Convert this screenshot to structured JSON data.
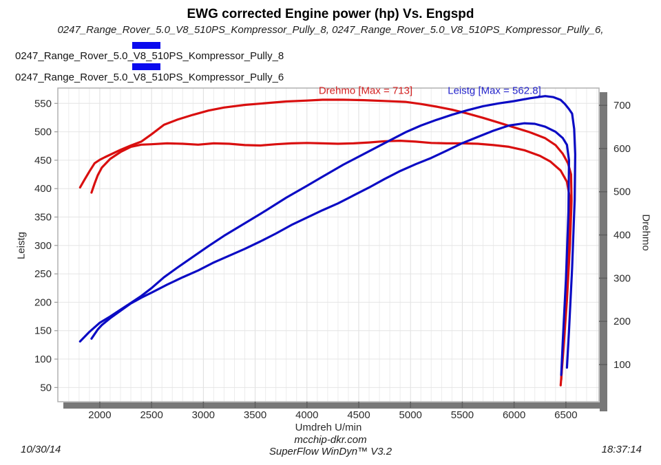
{
  "chart_data": {
    "type": "line",
    "title": "EWG corrected Engine power (hp) Vs. Engspd",
    "subtitle": "0247_Range_Rover_5.0_V8_510PS_Kompressor_Pully_8, 0247_Range_Rover_5.0_V8_510PS_Kompressor_Pully_6,",
    "legend": [
      {
        "label": "0247_Range_Rover_5.0_V8_510PS_Kompressor_Pully_8",
        "swatch_color": "#0a0aee"
      },
      {
        "label": "0247_Range_Rover_5.0_V8_510PS_Kompressor_Pully_6",
        "swatch_color": "#0a0aee"
      }
    ],
    "annotations": [
      {
        "text": "Drehmo [Max = 713]",
        "color": "#d42222"
      },
      {
        "text": "Leistg [Max = 562.8]",
        "color": "#2424cc"
      }
    ],
    "x_axis": {
      "label": "Umdreh U/min",
      "ticks": [
        2000,
        2500,
        3000,
        3500,
        4000,
        4500,
        5000,
        5500,
        6000,
        6500
      ],
      "range": [
        1595,
        6820
      ],
      "minor_grid_step": 100
    },
    "y_left": {
      "label": "Leistg",
      "ticks": [
        550,
        500,
        450,
        400,
        350,
        300,
        250,
        200,
        150,
        100,
        50
      ],
      "range": [
        25,
        577
      ]
    },
    "y_right": {
      "label": "Drehmo",
      "ticks": [
        700,
        600,
        500,
        400,
        300,
        200,
        100
      ],
      "range": [
        14,
        740
      ]
    },
    "grid": true,
    "legend_position": "top-left",
    "series": [
      {
        "name": "0247_Range_Rover_5.0_V8_510PS_Kompressor_Pully_8 Drehmo",
        "axis": "right",
        "unit": "Nm",
        "color": "#d90f0f",
        "points": [
          [
            1920,
            498
          ],
          [
            1950,
            519
          ],
          [
            1980,
            538
          ],
          [
            2020,
            556
          ],
          [
            2100,
            576
          ],
          [
            2200,
            592
          ],
          [
            2300,
            604
          ],
          [
            2400,
            609
          ],
          [
            2500,
            610
          ],
          [
            2650,
            612
          ],
          [
            2800,
            611
          ],
          [
            2950,
            609
          ],
          [
            3100,
            612
          ],
          [
            3250,
            611
          ],
          [
            3400,
            608
          ],
          [
            3550,
            607
          ],
          [
            3700,
            610
          ],
          [
            3850,
            612
          ],
          [
            4000,
            613
          ],
          [
            4150,
            612
          ],
          [
            4300,
            611
          ],
          [
            4450,
            612
          ],
          [
            4600,
            614
          ],
          [
            4750,
            617
          ],
          [
            4900,
            618
          ],
          [
            5050,
            616
          ],
          [
            5200,
            613
          ],
          [
            5350,
            612
          ],
          [
            5500,
            612
          ],
          [
            5650,
            611
          ],
          [
            5800,
            608
          ],
          [
            5950,
            604
          ],
          [
            6100,
            596
          ],
          [
            6250,
            583
          ],
          [
            6350,
            570
          ],
          [
            6450,
            549
          ],
          [
            6510,
            523
          ],
          [
            6535,
            490
          ],
          [
            6530,
            400
          ],
          [
            6505,
            280
          ],
          [
            6475,
            160
          ],
          [
            6455,
            65
          ]
        ]
      },
      {
        "name": "0247_Range_Rover_5.0_V8_510PS_Kompressor_Pully_6 Drehmo",
        "axis": "right",
        "unit": "Nm",
        "color": "#d90f0f",
        "points": [
          [
            1810,
            510
          ],
          [
            1850,
            527
          ],
          [
            1900,
            547
          ],
          [
            1950,
            566
          ],
          [
            2000,
            574
          ],
          [
            2050,
            580
          ],
          [
            2120,
            588
          ],
          [
            2200,
            597
          ],
          [
            2300,
            607
          ],
          [
            2400,
            616
          ],
          [
            2500,
            633
          ],
          [
            2620,
            655
          ],
          [
            2750,
            667
          ],
          [
            2900,
            678
          ],
          [
            3050,
            688
          ],
          [
            3200,
            695
          ],
          [
            3400,
            701
          ],
          [
            3600,
            705
          ],
          [
            3800,
            709
          ],
          [
            4000,
            711
          ],
          [
            4150,
            713
          ],
          [
            4350,
            713
          ],
          [
            4550,
            712
          ],
          [
            4750,
            710
          ],
          [
            4950,
            708
          ],
          [
            5100,
            703
          ],
          [
            5250,
            697
          ],
          [
            5400,
            690
          ],
          [
            5550,
            681
          ],
          [
            5700,
            671
          ],
          [
            5850,
            660
          ],
          [
            6000,
            649
          ],
          [
            6150,
            638
          ],
          [
            6300,
            624
          ],
          [
            6400,
            608
          ],
          [
            6470,
            588
          ],
          [
            6520,
            566
          ],
          [
            6550,
            540
          ],
          [
            6555,
            480
          ],
          [
            6540,
            380
          ],
          [
            6510,
            250
          ],
          [
            6475,
            130
          ],
          [
            6450,
            52
          ]
        ]
      },
      {
        "name": "0247_Range_Rover_5.0_V8_510PS_Kompressor_Pully_8 Leistg",
        "axis": "left",
        "unit": "hp",
        "color": "#0b0bc4",
        "points": [
          [
            1920,
            136
          ],
          [
            1980,
            152
          ],
          [
            2020,
            160
          ],
          [
            2100,
            172
          ],
          [
            2200,
            185
          ],
          [
            2300,
            198
          ],
          [
            2400,
            208
          ],
          [
            2500,
            217
          ],
          [
            2650,
            231
          ],
          [
            2800,
            244
          ],
          [
            2950,
            256
          ],
          [
            3100,
            270
          ],
          [
            3250,
            282
          ],
          [
            3400,
            294
          ],
          [
            3550,
            307
          ],
          [
            3700,
            321
          ],
          [
            3850,
            336
          ],
          [
            4000,
            349
          ],
          [
            4150,
            362
          ],
          [
            4300,
            374
          ],
          [
            4450,
            388
          ],
          [
            4600,
            402
          ],
          [
            4750,
            417
          ],
          [
            4900,
            431
          ],
          [
            5050,
            443
          ],
          [
            5200,
            454
          ],
          [
            5350,
            467
          ],
          [
            5500,
            480
          ],
          [
            5650,
            491
          ],
          [
            5800,
            502
          ],
          [
            5950,
            511
          ],
          [
            6100,
            515
          ],
          [
            6200,
            514
          ],
          [
            6300,
            509
          ],
          [
            6400,
            500
          ],
          [
            6470,
            489
          ],
          [
            6510,
            477
          ],
          [
            6530,
            450
          ],
          [
            6525,
            360
          ],
          [
            6500,
            240
          ],
          [
            6470,
            130
          ],
          [
            6455,
            72
          ]
        ]
      },
      {
        "name": "0247_Range_Rover_5.0_V8_510PS_Kompressor_Pully_6 Leistg",
        "axis": "left",
        "unit": "hp",
        "color": "#0b0bc4",
        "points": [
          [
            1810,
            131
          ],
          [
            1900,
            148
          ],
          [
            2000,
            164
          ],
          [
            2100,
            175
          ],
          [
            2200,
            187
          ],
          [
            2300,
            199
          ],
          [
            2400,
            211
          ],
          [
            2500,
            225
          ],
          [
            2620,
            244
          ],
          [
            2750,
            261
          ],
          [
            2900,
            280
          ],
          [
            3050,
            299
          ],
          [
            3200,
            317
          ],
          [
            3400,
            339
          ],
          [
            3600,
            361
          ],
          [
            3800,
            384
          ],
          [
            4000,
            405
          ],
          [
            4150,
            421
          ],
          [
            4350,
            442
          ],
          [
            4550,
            461
          ],
          [
            4750,
            480
          ],
          [
            4950,
            499
          ],
          [
            5100,
            511
          ],
          [
            5250,
            521
          ],
          [
            5400,
            530
          ],
          [
            5550,
            538
          ],
          [
            5700,
            545
          ],
          [
            5850,
            550
          ],
          [
            6000,
            554
          ],
          [
            6150,
            559
          ],
          [
            6300,
            562.8
          ],
          [
            6380,
            561
          ],
          [
            6450,
            556
          ],
          [
            6490,
            549
          ],
          [
            6530,
            540
          ],
          [
            6560,
            532
          ],
          [
            6580,
            505
          ],
          [
            6590,
            460
          ],
          [
            6585,
            380
          ],
          [
            6560,
            260
          ],
          [
            6530,
            150
          ],
          [
            6510,
            85
          ]
        ]
      }
    ],
    "max_values": {
      "Drehmo": 713,
      "Leistg": 562.8
    }
  },
  "footer": {
    "date": "10/30/14",
    "site": "mcchip-dkr.com",
    "software": "SuperFlow WinDyn™ V3.2",
    "time": "18:37:14"
  }
}
